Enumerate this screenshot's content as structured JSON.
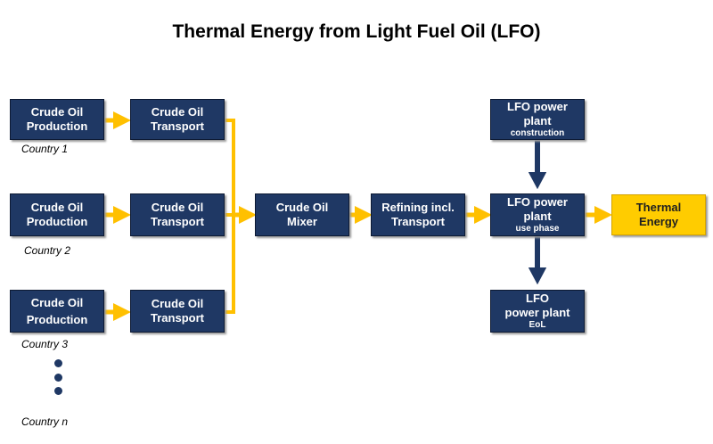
{
  "title": "Thermal Energy from Light Fuel Oil (LFO)",
  "colors": {
    "box_fill": "#1f3864",
    "output_fill": "#ffcc00",
    "flow_arrow": "#ffc000",
    "supply_arrow": "#1f3864"
  },
  "nodes": {
    "prod1": {
      "line1": "Crude Oil",
      "line2": "Production"
    },
    "prod2": {
      "line1": "Crude Oil",
      "line2": "Production"
    },
    "prod3": {
      "line1": "Crude Oil",
      "line2": "Production"
    },
    "trans1": {
      "line1": "Crude Oil",
      "line2": "Transport"
    },
    "trans2": {
      "line1": "Crude Oil",
      "line2": "Transport"
    },
    "trans3": {
      "line1": "Crude Oil",
      "line2": "Transport"
    },
    "mixer": {
      "line1": "Crude Oil",
      "line2": "Mixer"
    },
    "refining": {
      "line1": "Refining incl.",
      "line2": "Transport"
    },
    "construction": {
      "line1": "LFO power",
      "line2": "plant",
      "line3": "construction"
    },
    "usephase": {
      "line1": "LFO power",
      "line2": "plant",
      "line3": "use phase"
    },
    "eol": {
      "line1": "LFO",
      "line2": "power plant",
      "line3": "EoL"
    },
    "thermal": {
      "line1": "Thermal",
      "line2": "Energy"
    }
  },
  "countries": [
    "Country 1",
    "Country 2",
    "Country 3",
    "Country n"
  ]
}
